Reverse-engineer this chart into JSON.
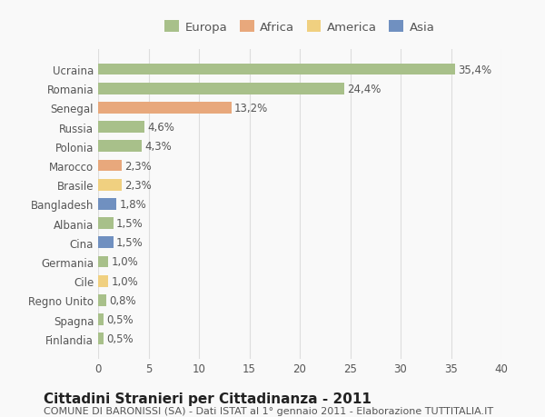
{
  "countries": [
    "Ucraina",
    "Romania",
    "Senegal",
    "Russia",
    "Polonia",
    "Marocco",
    "Brasile",
    "Bangladesh",
    "Albania",
    "Cina",
    "Germania",
    "Cile",
    "Regno Unito",
    "Spagna",
    "Finlandia"
  ],
  "values": [
    35.4,
    24.4,
    13.2,
    4.6,
    4.3,
    2.3,
    2.3,
    1.8,
    1.5,
    1.5,
    1.0,
    1.0,
    0.8,
    0.5,
    0.5
  ],
  "labels": [
    "35,4%",
    "24,4%",
    "13,2%",
    "4,6%",
    "4,3%",
    "2,3%",
    "2,3%",
    "1,8%",
    "1,5%",
    "1,5%",
    "1,0%",
    "1,0%",
    "0,8%",
    "0,5%",
    "0,5%"
  ],
  "continents": [
    "Europa",
    "Europa",
    "Africa",
    "Europa",
    "Europa",
    "Africa",
    "America",
    "Asia",
    "Europa",
    "Asia",
    "Europa",
    "America",
    "Europa",
    "Europa",
    "Europa"
  ],
  "continent_colors": {
    "Europa": "#a8c08a",
    "Africa": "#e8a87c",
    "America": "#f0d080",
    "Asia": "#7090c0"
  },
  "legend_order": [
    "Europa",
    "Africa",
    "America",
    "Asia"
  ],
  "title": "Cittadini Stranieri per Cittadinanza - 2011",
  "subtitle": "COMUNE DI BARONISSI (SA) - Dati ISTAT al 1° gennaio 2011 - Elaborazione TUTTITALIA.IT",
  "xlim": [
    0,
    40
  ],
  "xticks": [
    0,
    5,
    10,
    15,
    20,
    25,
    30,
    35,
    40
  ],
  "background_color": "#f9f9f9",
  "grid_color": "#dddddd",
  "bar_height": 0.6,
  "label_fontsize": 8.5,
  "tick_fontsize": 8.5,
  "title_fontsize": 11,
  "subtitle_fontsize": 8
}
